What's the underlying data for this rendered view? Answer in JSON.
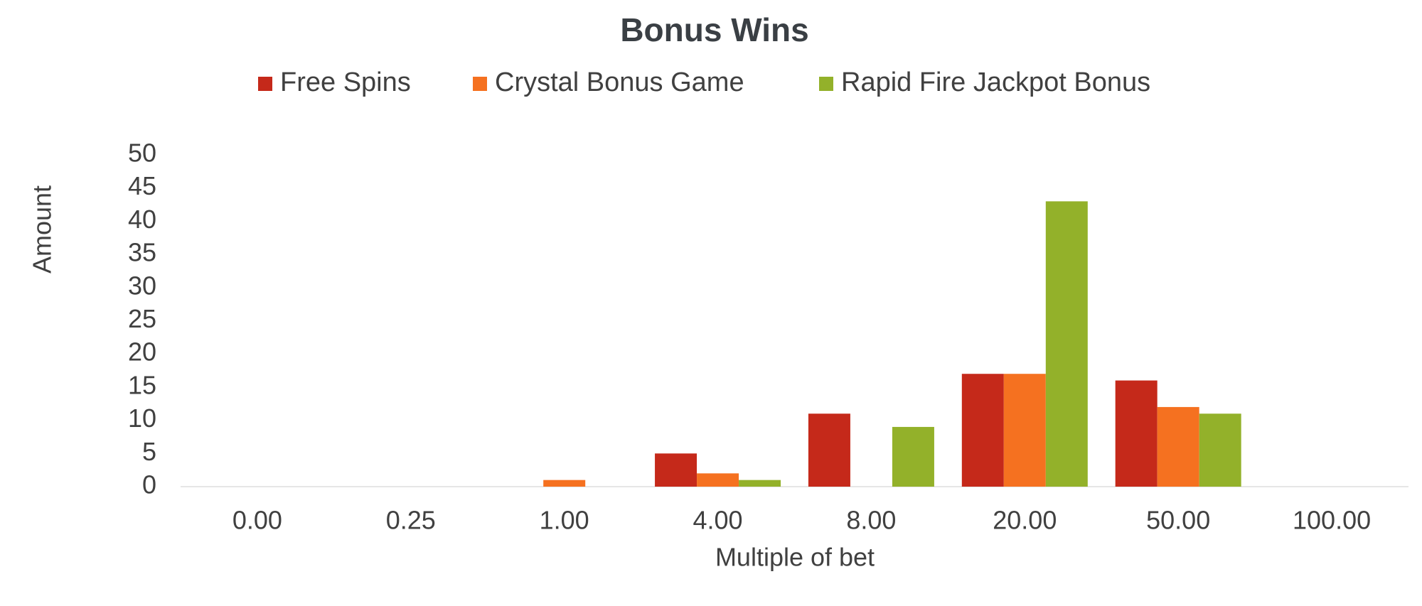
{
  "chart_data": {
    "type": "bar",
    "title": "Bonus Wins",
    "x_label": "Multiple of bet",
    "y_label": "Amount",
    "categories": [
      "0.00",
      "0.25",
      "1.00",
      "4.00",
      "8.00",
      "20.00",
      "50.00",
      "100.00"
    ],
    "series": [
      {
        "name": "Free Spins",
        "color": "#c5291a",
        "values": [
          0,
          0,
          0,
          5,
          11,
          17,
          16,
          0
        ]
      },
      {
        "name": "Crystal Bonus Game",
        "color": "#f57120",
        "values": [
          0,
          0,
          1,
          2,
          0,
          17,
          12,
          0
        ]
      },
      {
        "name": "Rapid Fire Jackpot Bonus",
        "color": "#93b12a",
        "values": [
          0,
          0,
          0,
          1,
          9,
          43,
          11,
          0
        ]
      }
    ],
    "ylim": [
      0,
      50
    ],
    "yticks": [
      0,
      5,
      10,
      15,
      20,
      25,
      30,
      35,
      40,
      45,
      50
    ],
    "grid": false,
    "legend": "top"
  }
}
